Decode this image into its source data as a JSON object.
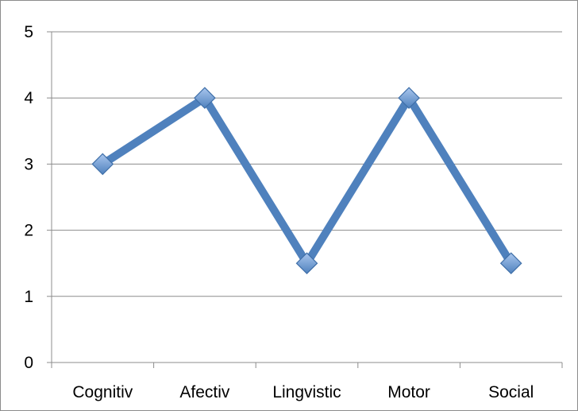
{
  "chart_data": {
    "type": "line",
    "categories": [
      "Cognitiv",
      "Afectiv",
      "Lingvistic",
      "Motor",
      "Social"
    ],
    "series": [
      {
        "values": [
          3,
          4,
          1.5,
          4,
          1.5
        ]
      }
    ],
    "y_ticks": [
      "0",
      "1",
      "2",
      "3",
      "4",
      "5"
    ],
    "ylim": [
      0,
      5
    ],
    "grid": true,
    "legend": "none",
    "marker": "diamond",
    "colors": {
      "line": "#4f81bd",
      "marker_fill": "#6f9fdc",
      "grid": "#8c8c8c",
      "axis": "#8c8c8c"
    }
  }
}
